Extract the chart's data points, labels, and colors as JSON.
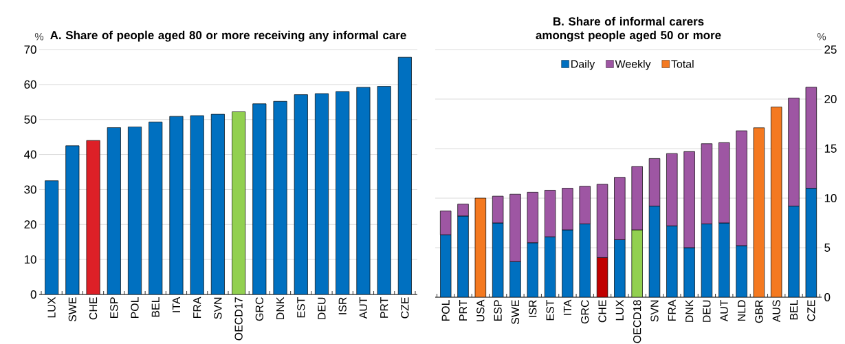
{
  "chart_data": [
    {
      "type": "bar",
      "title": "A. Share of people aged 80 or more receiving any informal care",
      "ylabel": "%",
      "categories": [
        "LUX",
        "SWE",
        "CHE",
        "ESP",
        "POL",
        "BEL",
        "ITA",
        "FRA",
        "SVN",
        "OECD17",
        "GRC",
        "DNK",
        "EST",
        "DEU",
        "ISR",
        "AUT",
        "PRT",
        "CZE"
      ],
      "values": [
        32.5,
        42.5,
        44.0,
        47.7,
        47.9,
        49.3,
        50.9,
        51.1,
        51.5,
        52.2,
        54.5,
        55.2,
        57.1,
        57.4,
        58.0,
        59.2,
        59.5,
        67.8
      ],
      "colors": [
        "#0070c0",
        "#0070c0",
        "#dd2027",
        "#0070c0",
        "#0070c0",
        "#0070c0",
        "#0070c0",
        "#0070c0",
        "#0070c0",
        "#92d050",
        "#0070c0",
        "#0070c0",
        "#0070c0",
        "#0070c0",
        "#0070c0",
        "#0070c0",
        "#0070c0",
        "#0070c0"
      ],
      "ylim": [
        0,
        70
      ],
      "yticks": [
        0,
        10,
        20,
        30,
        40,
        50,
        60,
        70
      ],
      "grid": "y"
    },
    {
      "type": "bar",
      "title": "B. Share of informal carers amongst people aged 50 or more",
      "ylabel": "%",
      "categories": [
        "POL",
        "PRT",
        "USA",
        "ESP",
        "SWE",
        "ISR",
        "EST",
        "ITA",
        "GRC",
        "CHE",
        "LUX",
        "OECD18",
        "SVN",
        "FRA",
        "DNK",
        "DEU",
        "AUT",
        "NLD",
        "GBR",
        "AUS",
        "BEL",
        "CZE"
      ],
      "series": [
        {
          "name": "Daily",
          "color": "#0070c0",
          "colors": [
            "#0070c0",
            "#0070c0",
            "#0070c0",
            "#0070c0",
            "#0070c0",
            "#0070c0",
            "#0070c0",
            "#0070c0",
            "#0070c0",
            "#c00000",
            "#0070c0",
            "#92d050",
            "#0070c0",
            "#0070c0",
            "#0070c0",
            "#0070c0",
            "#0070c0",
            "#0070c0",
            "#0070c0",
            "#0070c0",
            "#0070c0",
            "#0070c0"
          ],
          "values": [
            6.3,
            8.2,
            null,
            7.5,
            3.6,
            5.5,
            6.1,
            6.8,
            7.4,
            4.0,
            5.8,
            6.8,
            9.2,
            7.2,
            5.0,
            7.4,
            7.5,
            5.2,
            null,
            null,
            9.2,
            11.0
          ]
        },
        {
          "name": "Weekly",
          "color": "#9e56a3",
          "values": [
            2.4,
            1.2,
            null,
            2.7,
            6.8,
            5.1,
            4.7,
            4.2,
            3.8,
            7.4,
            6.3,
            6.4,
            4.8,
            7.3,
            9.7,
            8.1,
            8.1,
            11.6,
            null,
            null,
            10.9,
            10.2
          ]
        },
        {
          "name": "Total",
          "color": "#f47920",
          "values": [
            null,
            null,
            10.0,
            null,
            null,
            null,
            null,
            null,
            null,
            null,
            null,
            null,
            null,
            null,
            null,
            null,
            null,
            null,
            17.1,
            19.2,
            null,
            null
          ]
        }
      ],
      "stacked": true,
      "ylim": [
        0,
        25
      ],
      "yticks": [
        0,
        5,
        10,
        15,
        20,
        25
      ],
      "grid": "y",
      "legend": "top"
    }
  ]
}
